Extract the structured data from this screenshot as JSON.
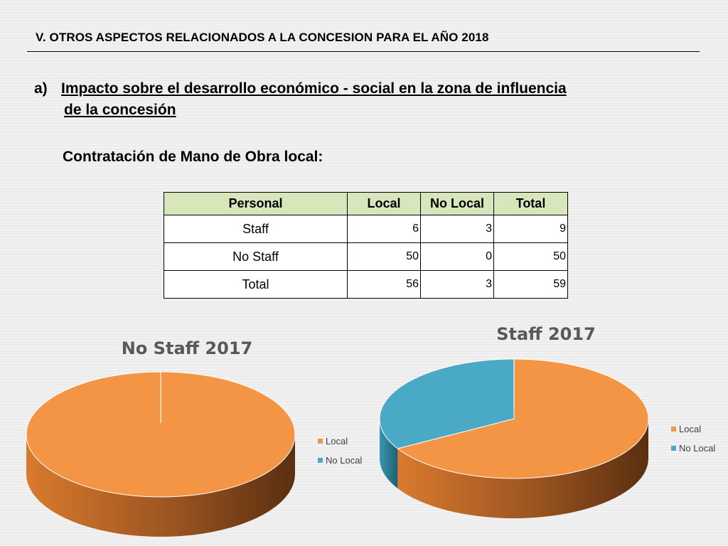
{
  "header": {
    "title": "V. OTROS  ASPECTOS RELACIONADOS A LA CONCESION PARA EL AÑO 2018"
  },
  "subtitle": {
    "marker": "a)",
    "line1": "Impacto sobre el desarrollo económico - social en la zona de influencia",
    "line2": "de la concesión"
  },
  "section_heading": "Contratación de Mano de Obra local:",
  "table": {
    "headers": [
      "Personal",
      "Local",
      "No Local",
      "Total"
    ],
    "rows": [
      {
        "label": "Staff",
        "local": "6",
        "no_local": "3",
        "total": "9"
      },
      {
        "label": "No Staff",
        "local": "50",
        "no_local": "0",
        "total": "50"
      },
      {
        "label": "Total",
        "local": "56",
        "no_local": "3",
        "total": "59"
      }
    ]
  },
  "colors": {
    "local": "#f39544",
    "local_dark": "#8a4c1c",
    "no_local": "#4aa9c5",
    "no_local_dark": "#256f85",
    "table_header_bg": "#d8e6bc",
    "chart_title": "#595959"
  },
  "chart_data": [
    {
      "type": "pie",
      "title": "No Staff 2017",
      "categories": [
        "Local",
        "No Local"
      ],
      "values": [
        50,
        0
      ],
      "legend": "right"
    },
    {
      "type": "pie",
      "title": "Staff 2017",
      "categories": [
        "Local",
        "No Local"
      ],
      "values": [
        6,
        3
      ],
      "legend": "right"
    }
  ]
}
